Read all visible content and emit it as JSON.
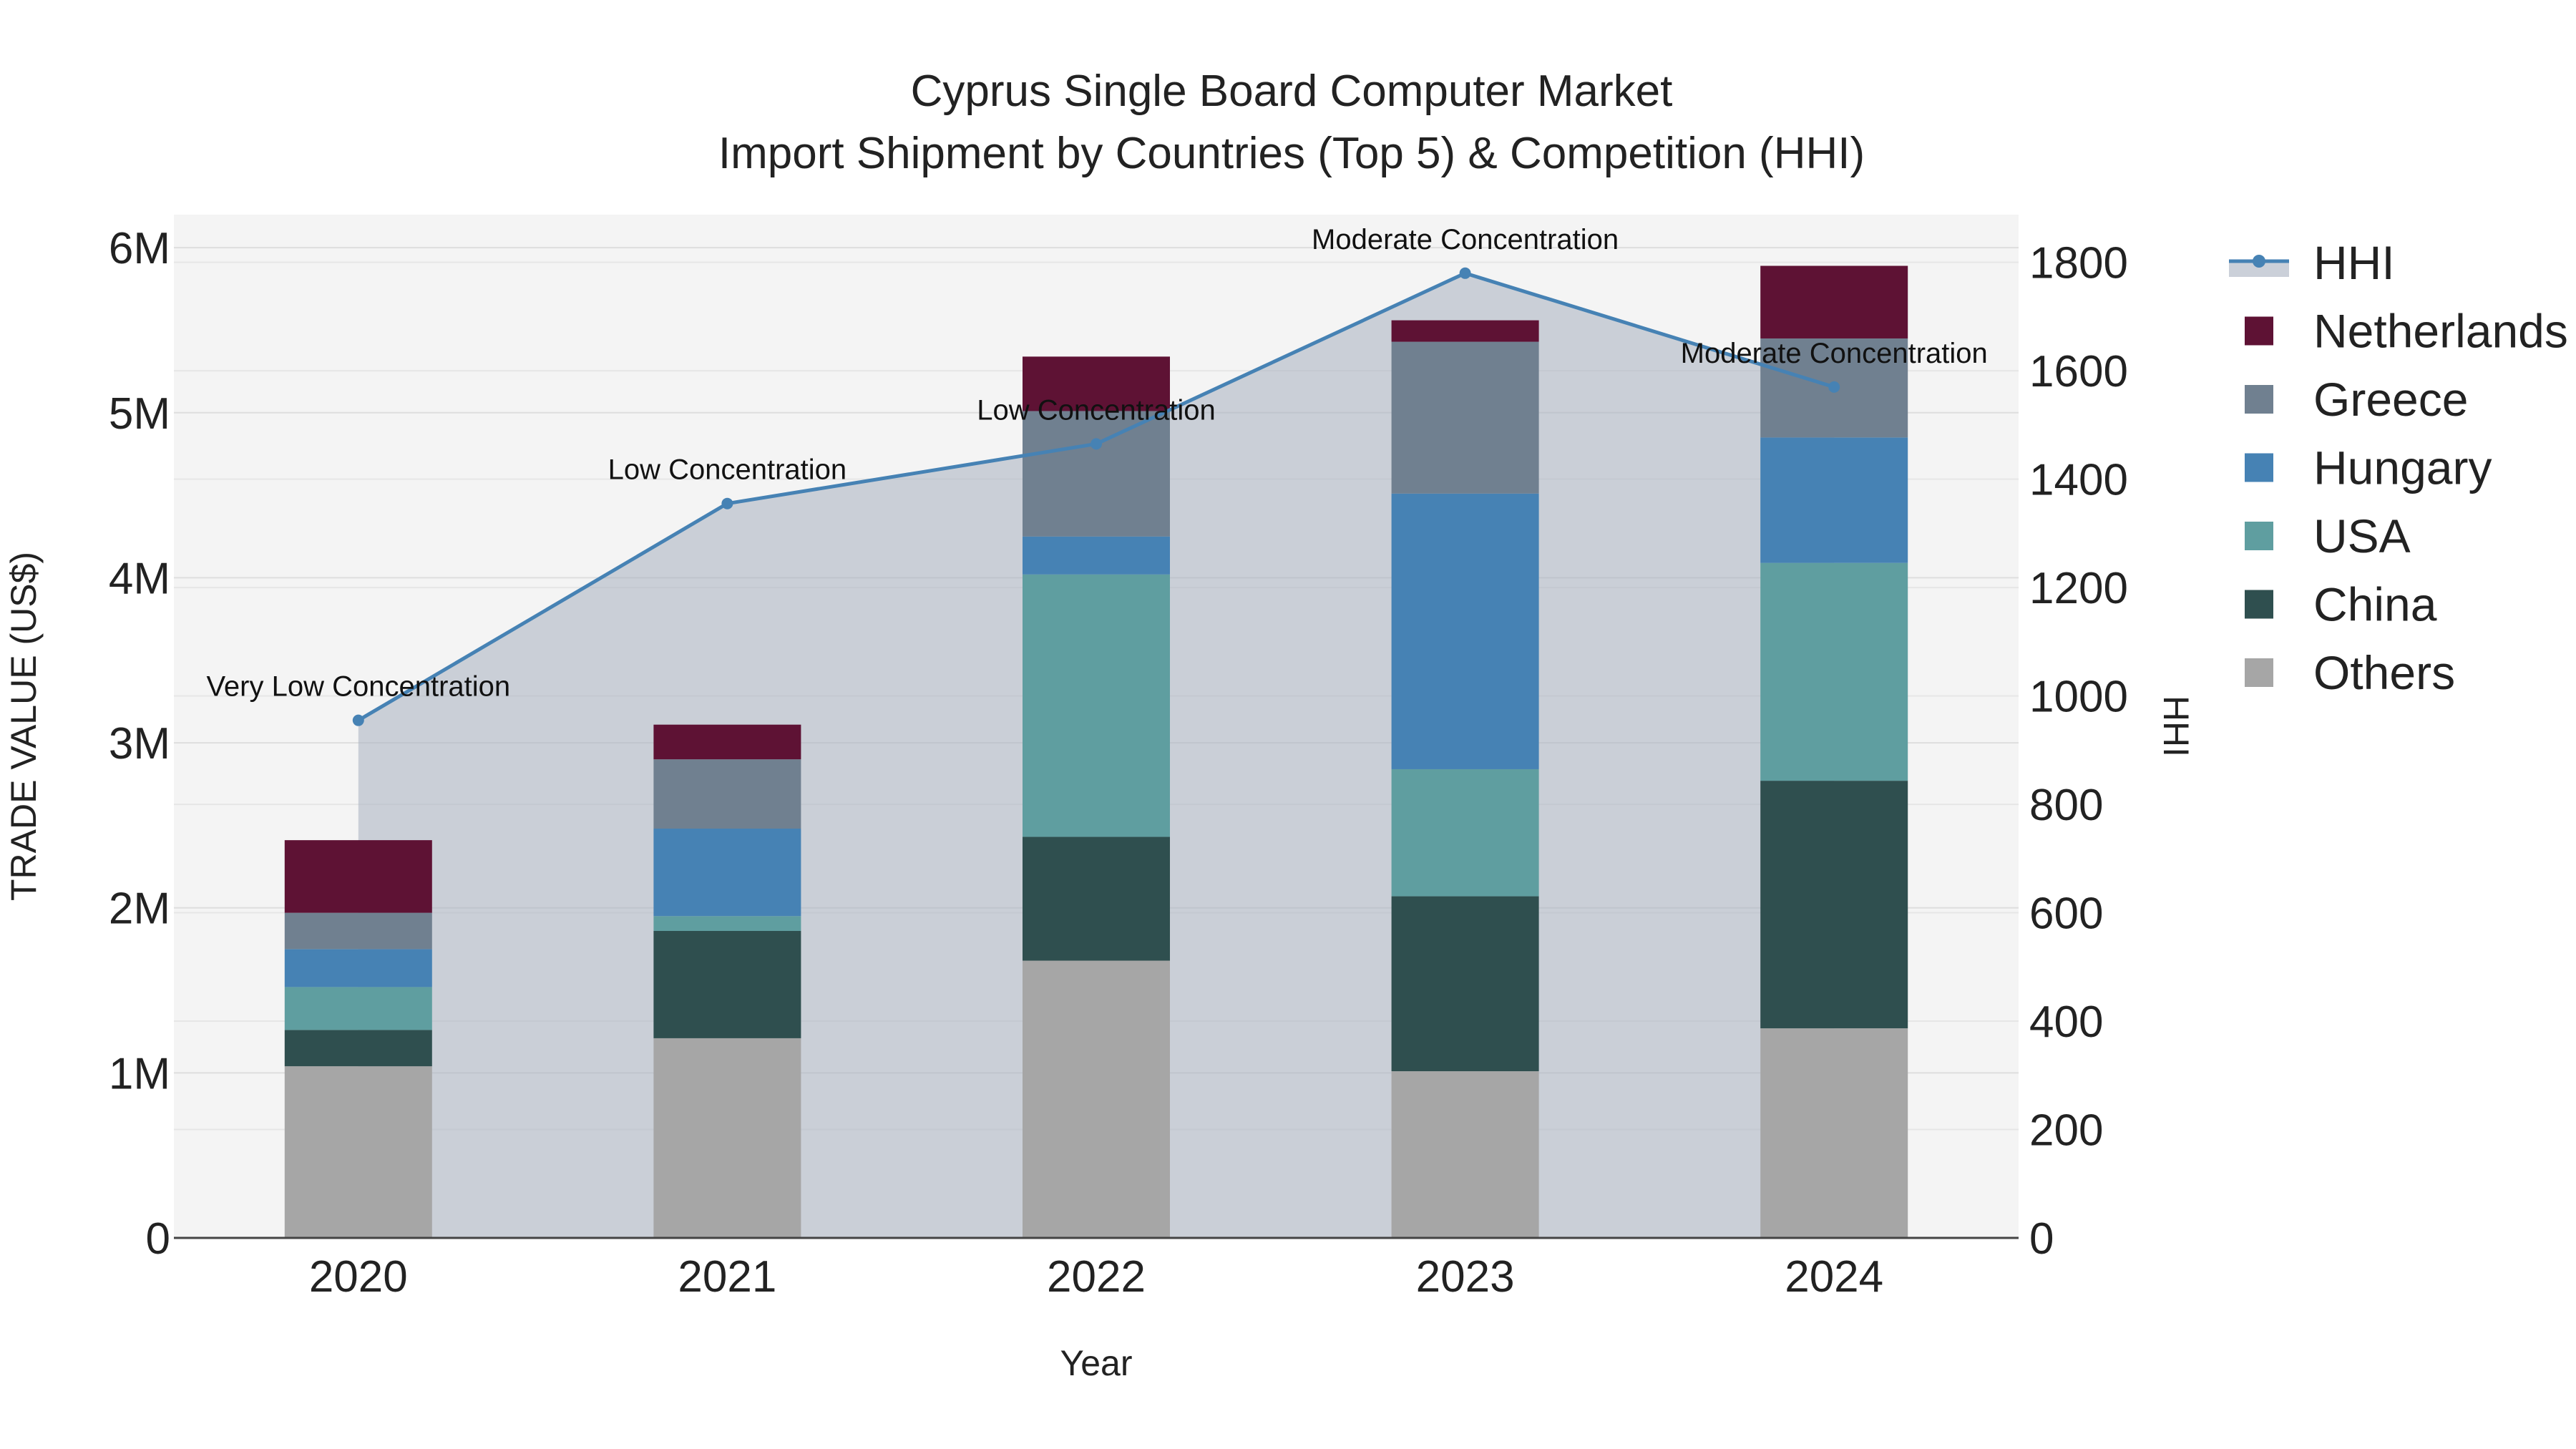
{
  "chart_data": {
    "type": "bar",
    "title": "Cyprus Single Board Computer Market",
    "subtitle": "Import Shipment by Countries (Top 5) & Competition (HHI)",
    "xlabel": "Year",
    "ylabel": "TRADE VALUE (US$)",
    "y2label": "HHI",
    "categories": [
      "2020",
      "2021",
      "2022",
      "2023",
      "2024"
    ],
    "ylim": [
      0,
      6200000
    ],
    "y2lim": [
      0,
      1888
    ],
    "yticks": [
      {
        "value": 0,
        "label": "0"
      },
      {
        "value": 1000000,
        "label": "1M"
      },
      {
        "value": 2000000,
        "label": "2M"
      },
      {
        "value": 3000000,
        "label": "3M"
      },
      {
        "value": 4000000,
        "label": "4M"
      },
      {
        "value": 5000000,
        "label": "5M"
      },
      {
        "value": 6000000,
        "label": "6M"
      }
    ],
    "y2ticks": [
      {
        "value": 0,
        "label": "0"
      },
      {
        "value": 200,
        "label": "200"
      },
      {
        "value": 400,
        "label": "400"
      },
      {
        "value": 600,
        "label": "600"
      },
      {
        "value": 800,
        "label": "800"
      },
      {
        "value": 1000,
        "label": "1000"
      },
      {
        "value": 1200,
        "label": "1200"
      },
      {
        "value": 1400,
        "label": "1400"
      },
      {
        "value": 1600,
        "label": "1600"
      },
      {
        "value": 1800,
        "label": "1800"
      }
    ],
    "series": [
      {
        "name": "Others",
        "color": "#a6a6a6",
        "values": [
          1040000,
          1210000,
          1680000,
          1010000,
          1270000
        ]
      },
      {
        "name": "China",
        "color": "#2f4f4f",
        "values": [
          220000,
          650000,
          750000,
          1060000,
          1500000
        ]
      },
      {
        "name": "USA",
        "color": "#5f9ea0",
        "values": [
          260000,
          90000,
          1590000,
          770000,
          1320000
        ]
      },
      {
        "name": "Hungary",
        "color": "#4682b4",
        "values": [
          230000,
          530000,
          230000,
          1670000,
          760000
        ]
      },
      {
        "name": "Greece",
        "color": "#708090",
        "values": [
          220000,
          420000,
          760000,
          920000,
          600000
        ]
      },
      {
        "name": "Netherlands",
        "color": "#5e1234",
        "values": [
          440000,
          210000,
          330000,
          130000,
          440000
        ]
      }
    ],
    "hhi": {
      "name": "HHI",
      "color": "#4682b4",
      "values": [
        955,
        1355,
        1465,
        1780,
        1570
      ],
      "annotations": [
        "Very Low Concentration",
        "Low Concentration",
        "Low Concentration",
        "Moderate Concentration",
        "Moderate Concentration"
      ]
    },
    "legend": [
      "HHI",
      "Netherlands",
      "Greece",
      "Hungary",
      "USA",
      "China",
      "Others"
    ],
    "legend_position": "top-right"
  }
}
